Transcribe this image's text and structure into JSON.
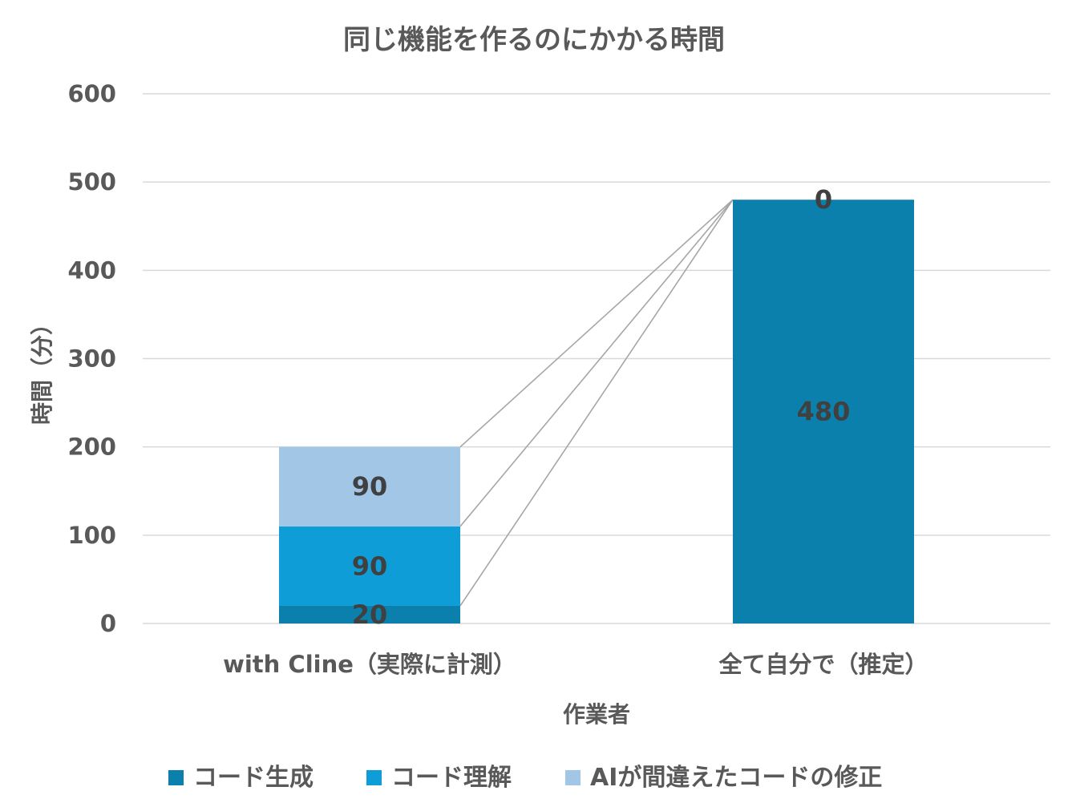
{
  "chart_data": {
    "type": "bar",
    "stacked": true,
    "title": "同じ機能を作るのにかかる時間",
    "xlabel": "作業者",
    "ylabel": "時間（分）",
    "ylim": [
      0,
      600
    ],
    "yticks": [
      0,
      100,
      200,
      300,
      400,
      500,
      600
    ],
    "grid": true,
    "legend_position": "bottom",
    "series_lines": true,
    "categories": [
      "with Cline（実際に計測）",
      "全て自分で（推定）"
    ],
    "series": [
      {
        "name": "コード生成",
        "color": "#0b80ad",
        "values": [
          20,
          480
        ]
      },
      {
        "name": "コード理解",
        "color": "#0e9dd6",
        "values": [
          90,
          0
        ]
      },
      {
        "name": "AIが間違えたコードの修正",
        "color": "#a2c6e6",
        "values": [
          90,
          0
        ]
      }
    ],
    "data_labels": [
      [
        "20",
        "480"
      ],
      [
        "90",
        "0"
      ],
      [
        "90",
        ""
      ]
    ]
  }
}
